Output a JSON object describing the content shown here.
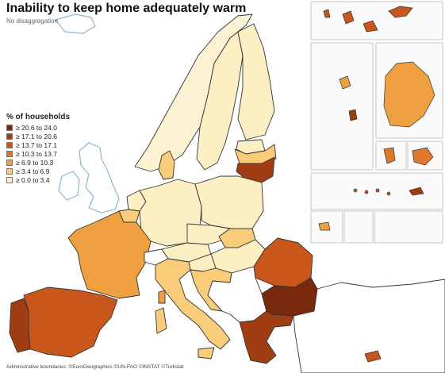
{
  "title": "Inability to keep home adequately warm",
  "subtitle": "No disaggregation",
  "legend": {
    "title": "% of households",
    "classes": [
      {
        "label": "≥ 20.6 to 24.0",
        "color": "#7a2a0c"
      },
      {
        "label": "≥ 17.1 to 20.6",
        "color": "#a13d12"
      },
      {
        "label": "≥ 13.7 to 17.1",
        "color": "#c9571c"
      },
      {
        "label": "≥ 10.3 to 13.7",
        "color": "#e0782a"
      },
      {
        "label": "≥ 6.9 to 10.3",
        "color": "#f0a040"
      },
      {
        "label": "≥ 3.4 to 6.9",
        "color": "#f8cc78"
      },
      {
        "label": "≥ 0.0 to 3.4",
        "color": "#fcefc4"
      }
    ]
  },
  "colors": {
    "sea": "#ffffff",
    "non_eu_fill": "#ffffff",
    "border": "#333333",
    "coast": "#8fb6cc"
  },
  "credits": "Administrative boundaries: ©EuroGeographics ©UN-FAO ©INSTAT ©Turkstat"
}
